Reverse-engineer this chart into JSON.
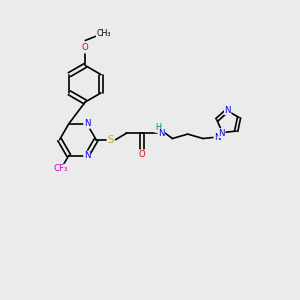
{
  "bg_color": "#ebebeb",
  "bond_color": "#000000",
  "atom_colors": {
    "N": "#0000ee",
    "O": "#ee0000",
    "S": "#ccaa00",
    "F": "#cc00cc",
    "H": "#008080",
    "C": "#000000"
  },
  "figsize": [
    3.0,
    3.0
  ],
  "dpi": 100
}
